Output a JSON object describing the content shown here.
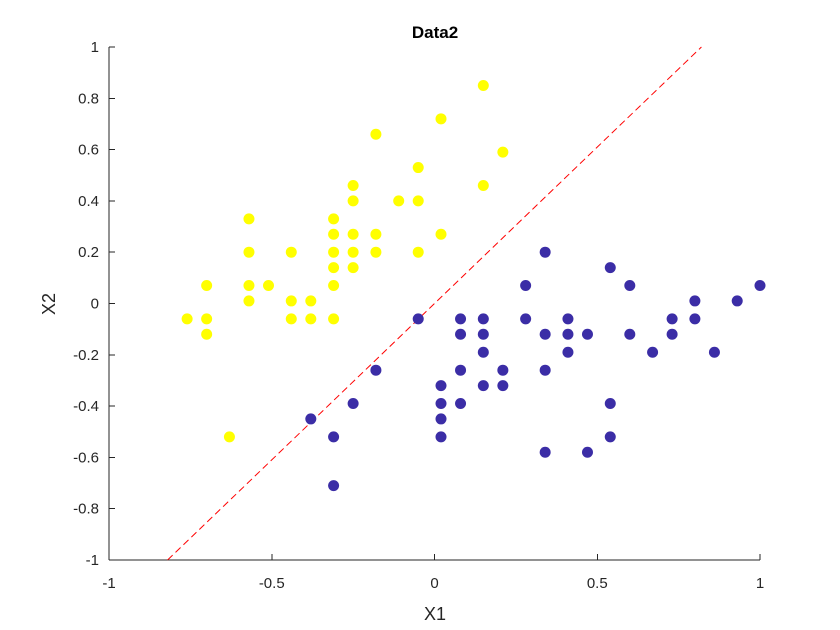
{
  "chart_data": {
    "type": "scatter",
    "title": "Data2",
    "xlabel": "X1",
    "ylabel": "X2",
    "xlim": [
      -1,
      1
    ],
    "ylim": [
      -1,
      1
    ],
    "xticks": [
      -1,
      -0.5,
      0,
      0.5,
      1
    ],
    "xtick_labels": [
      "-1",
      "-0.5",
      "0",
      "0.5",
      "1"
    ],
    "yticks": [
      -1,
      -0.8,
      -0.6,
      -0.4,
      -0.2,
      0,
      0.2,
      0.4,
      0.6,
      0.8,
      1
    ],
    "ytick_labels": [
      "-1",
      "-0.8",
      "-0.6",
      "-0.4",
      "-0.2",
      "0",
      "0.2",
      "0.4",
      "0.6",
      "0.8",
      "1"
    ],
    "grid": false,
    "series": [
      {
        "color": "#ffff00",
        "points": [
          [
            -0.76,
            -0.06
          ],
          [
            -0.7,
            0.07
          ],
          [
            -0.7,
            -0.06
          ],
          [
            -0.7,
            -0.12
          ],
          [
            -0.63,
            -0.52
          ],
          [
            -0.57,
            0.33
          ],
          [
            -0.57,
            0.2
          ],
          [
            -0.57,
            0.07
          ],
          [
            -0.57,
            0.01
          ],
          [
            -0.51,
            0.07
          ],
          [
            -0.44,
            0.2
          ],
          [
            -0.44,
            0.01
          ],
          [
            -0.44,
            -0.06
          ],
          [
            -0.38,
            0.01
          ],
          [
            -0.38,
            -0.06
          ],
          [
            -0.31,
            0.33
          ],
          [
            -0.31,
            0.27
          ],
          [
            -0.31,
            0.2
          ],
          [
            -0.31,
            0.14
          ],
          [
            -0.31,
            0.07
          ],
          [
            -0.31,
            -0.06
          ],
          [
            -0.25,
            0.46
          ],
          [
            -0.25,
            0.4
          ],
          [
            -0.25,
            0.27
          ],
          [
            -0.25,
            0.2
          ],
          [
            -0.25,
            0.14
          ],
          [
            -0.18,
            0.66
          ],
          [
            -0.18,
            0.27
          ],
          [
            -0.18,
            0.2
          ],
          [
            -0.11,
            0.4
          ],
          [
            -0.05,
            0.53
          ],
          [
            -0.05,
            0.4
          ],
          [
            -0.05,
            0.2
          ],
          [
            0.02,
            0.72
          ],
          [
            0.02,
            0.27
          ],
          [
            0.15,
            0.85
          ],
          [
            0.15,
            0.46
          ],
          [
            0.21,
            0.59
          ]
        ]
      },
      {
        "color": "#3b2da6",
        "points": [
          [
            -0.38,
            -0.45
          ],
          [
            -0.31,
            -0.52
          ],
          [
            -0.31,
            -0.71
          ],
          [
            -0.25,
            -0.39
          ],
          [
            -0.18,
            -0.26
          ],
          [
            -0.05,
            -0.06
          ],
          [
            0.02,
            -0.32
          ],
          [
            0.02,
            -0.39
          ],
          [
            0.02,
            -0.45
          ],
          [
            0.02,
            -0.52
          ],
          [
            0.08,
            -0.06
          ],
          [
            0.08,
            -0.12
          ],
          [
            0.08,
            -0.26
          ],
          [
            0.08,
            -0.39
          ],
          [
            0.15,
            -0.06
          ],
          [
            0.15,
            -0.12
          ],
          [
            0.15,
            -0.19
          ],
          [
            0.15,
            -0.32
          ],
          [
            0.21,
            -0.26
          ],
          [
            0.21,
            -0.32
          ],
          [
            0.28,
            0.07
          ],
          [
            0.28,
            -0.06
          ],
          [
            0.34,
            0.2
          ],
          [
            0.34,
            -0.12
          ],
          [
            0.34,
            -0.26
          ],
          [
            0.34,
            -0.58
          ],
          [
            0.41,
            -0.06
          ],
          [
            0.41,
            -0.12
          ],
          [
            0.41,
            -0.19
          ],
          [
            0.47,
            -0.12
          ],
          [
            0.47,
            -0.58
          ],
          [
            0.54,
            0.14
          ],
          [
            0.54,
            -0.39
          ],
          [
            0.54,
            -0.52
          ],
          [
            0.6,
            0.07
          ],
          [
            0.6,
            -0.12
          ],
          [
            0.67,
            -0.19
          ],
          [
            0.73,
            -0.06
          ],
          [
            0.73,
            -0.12
          ],
          [
            0.8,
            0.01
          ],
          [
            0.8,
            -0.06
          ],
          [
            0.86,
            -0.19
          ],
          [
            0.93,
            0.01
          ],
          [
            1.0,
            0.07
          ]
        ]
      }
    ],
    "lines": [
      {
        "color": "#ff0000",
        "style": "dashed",
        "x": [
          -0.82,
          0.82
        ],
        "y": [
          -1,
          1
        ]
      }
    ]
  }
}
